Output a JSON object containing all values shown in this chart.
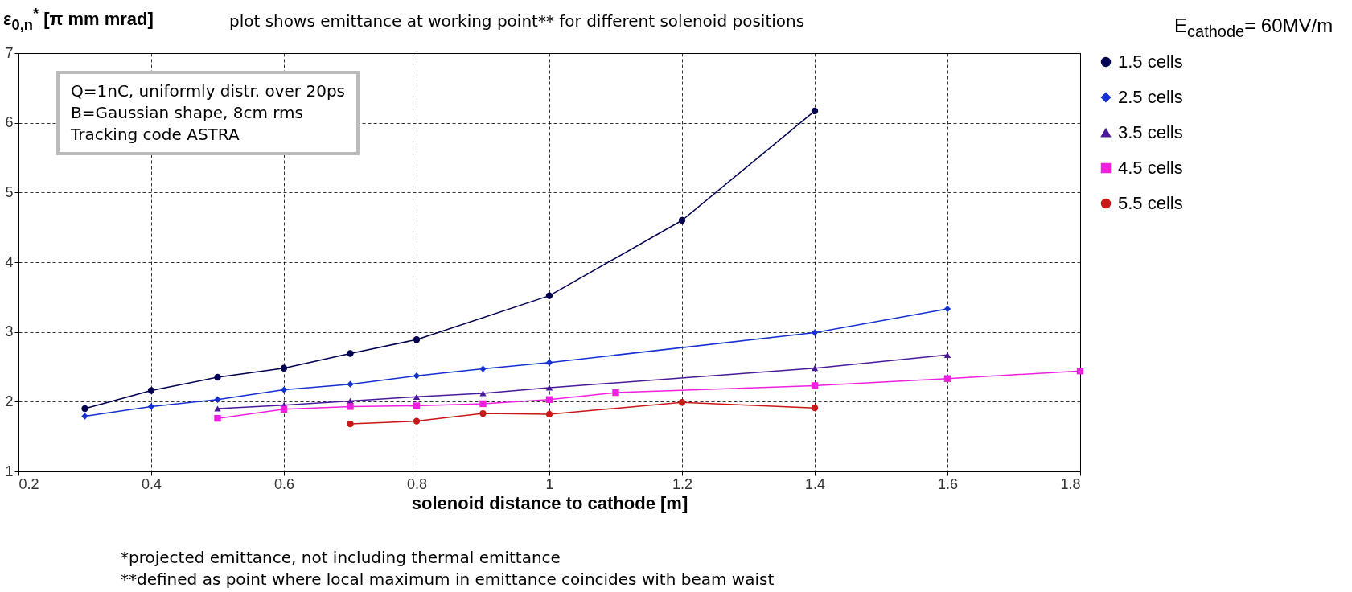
{
  "chart_data": {
    "type": "line",
    "title": "plot shows emittance at working point** for different solenoid positions",
    "ylabel": "ε$_{0,n}$$^{*}$ [π mm mrad]",
    "xlabel": "solenoid distance to cathode [m]",
    "annotations": [
      "Q=1nC, uniformly distr. over 20ps",
      "B=Gaussian shape, 8cm rms",
      "Tracking code ASTRA",
      "E$_{cathode}$= 60MV/m",
      "*projected emittance, not including thermal emittance",
      "**defined as point where local maximum in emittance coincides with beam waist"
    ],
    "xlim": [
      0.2,
      1.8
    ],
    "xticks": [
      0.2,
      0.4,
      0.6,
      0.8,
      1,
      1.2,
      1.4,
      1.6,
      1.8
    ],
    "ylim": [
      1,
      7
    ],
    "yticks": [
      1,
      2,
      3,
      4,
      5,
      6,
      7
    ],
    "grid": true,
    "legend": "right",
    "series": [
      {
        "name": "1.5 cells",
        "color": "#000050",
        "marker": "circle",
        "x": [
          0.3,
          0.4,
          0.5,
          0.6,
          0.7,
          0.8,
          1.0,
          1.2,
          1.4
        ],
        "values": [
          1.9,
          2.16,
          2.35,
          2.48,
          2.69,
          2.89,
          3.52,
          4.6,
          6.17
        ]
      },
      {
        "name": "2.5 cells",
        "color": "#1530d0",
        "marker": "diamond",
        "x": [
          0.3,
          0.4,
          0.5,
          0.6,
          0.7,
          0.8,
          0.9,
          1.0,
          1.4,
          1.6
        ],
        "values": [
          1.79,
          1.93,
          2.03,
          2.17,
          2.25,
          2.37,
          2.47,
          2.56,
          2.99,
          3.33
        ]
      },
      {
        "name": "3.5 cells",
        "color": "#4a1a9a",
        "marker": "triangle",
        "x": [
          0.5,
          0.6,
          0.7,
          0.8,
          0.9,
          1.0,
          1.4,
          1.6
        ],
        "values": [
          1.9,
          1.95,
          2.01,
          2.07,
          2.12,
          2.2,
          2.48,
          2.67
        ]
      },
      {
        "name": "4.5 cells",
        "color": "#f020e0",
        "marker": "square",
        "x": [
          0.5,
          0.6,
          0.7,
          0.8,
          0.9,
          1.0,
          1.1,
          1.4,
          1.6,
          1.8
        ],
        "values": [
          1.76,
          1.89,
          1.93,
          1.94,
          1.97,
          2.03,
          2.13,
          2.23,
          2.33,
          2.44
        ]
      },
      {
        "name": "5.5 cells",
        "color": "#c81818",
        "marker": "circle",
        "x": [
          0.7,
          0.8,
          0.9,
          1.0,
          1.2,
          1.4
        ],
        "values": [
          1.68,
          1.72,
          1.83,
          1.82,
          1.99,
          1.91
        ]
      }
    ]
  }
}
